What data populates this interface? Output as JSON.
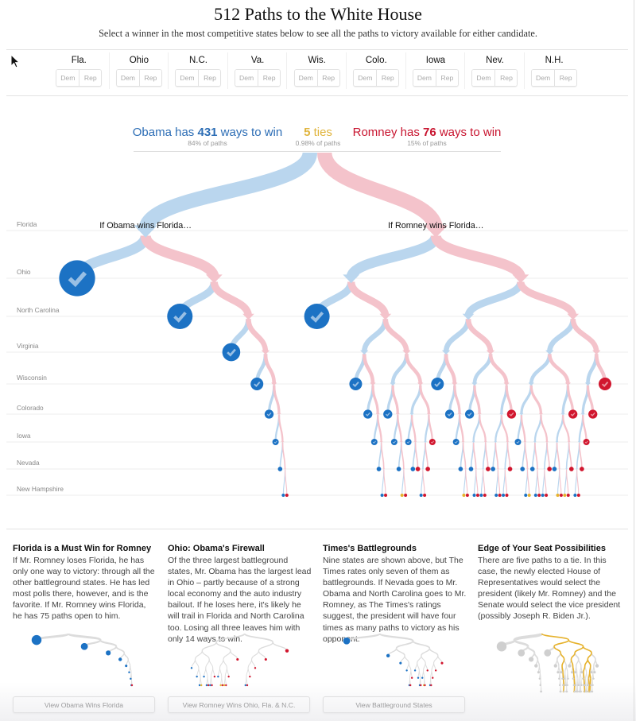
{
  "header": {
    "title": "512 Paths to the White House",
    "subtitle": "Select a winner in the most competitive states below to see all the paths to victory available for either candidate."
  },
  "states": [
    {
      "label": "Fla.",
      "dem": "Dem",
      "rep": "Rep"
    },
    {
      "label": "Ohio",
      "dem": "Dem",
      "rep": "Rep"
    },
    {
      "label": "N.C.",
      "dem": "Dem",
      "rep": "Rep"
    },
    {
      "label": "Va.",
      "dem": "Dem",
      "rep": "Rep"
    },
    {
      "label": "Wis.",
      "dem": "Dem",
      "rep": "Rep"
    },
    {
      "label": "Colo.",
      "dem": "Dem",
      "rep": "Rep"
    },
    {
      "label": "Iowa",
      "dem": "Dem",
      "rep": "Rep"
    },
    {
      "label": "Nev.",
      "dem": "Dem",
      "rep": "Rep"
    },
    {
      "label": "N.H.",
      "dem": "Dem",
      "rep": "Rep"
    }
  ],
  "summary": {
    "obama": {
      "lead": "Obama has ",
      "count": "431",
      "tail": " ways to win",
      "share": "84% of paths"
    },
    "ties": {
      "count": "5",
      "tail": " ties",
      "share": "0.98% of paths"
    },
    "romney": {
      "lead": "Romney has ",
      "count": "76",
      "tail": " ways to win",
      "share": "15% of paths"
    }
  },
  "colors": {
    "obama": "#1c72c4",
    "romney": "#d1162e",
    "tie": "#e6b22c",
    "obama_light": "#bad6ee",
    "romney_light": "#f4c3cb",
    "mini_line": "#dcdcdc",
    "mini_dot": "#cfcfcf"
  },
  "chart_data": {
    "type": "tree",
    "title": "512 Paths to the White House",
    "levels": [
      "Florida",
      "Ohio",
      "North Carolina",
      "Virginia",
      "Wisconsin",
      "Colorado",
      "Iowa",
      "Nevada",
      "New Hampshire"
    ],
    "branch_order": [
      "Obama",
      "Romney"
    ],
    "branch_labels": [
      "If Obama wins Florida…",
      "If Romney wins Florida…"
    ],
    "outcome_codes": {
      "D": "Obama wins",
      "R": "Romney wins",
      "T": "Tie"
    },
    "totals": {
      "paths": 512,
      "obama": 431,
      "romney": 76,
      "ties": 5
    },
    "tree": [
      [
        "D",
        [
          "D",
          [
            "D",
            [
              "D",
              [
                "D",
                [
                  "D",
                  [
                    "D",
                    [
                      "D",
                      "R"
                    ]
                  ]
                ]
              ]
            ]
          ]
        ]
      ],
      [
        [
          "D",
          [
            [
              "D",
              [
                "D",
                [
                  "D",
                  [
                    "D",
                    [
                      "D",
                      "R"
                    ]
                  ]
                ]
              ]
            ],
            [
              [
                "D",
                [
                  "D",
                  [
                    "D",
                    [
                      "T",
                      "R"
                    ]
                  ]
                ]
              ],
              [
                [
                  "D",
                  [
                    "D",
                    "R"
                  ]
                ],
                [
                  [
                    [
                      "D",
                      "R"
                    ],
                    "R"
                  ],
                  "R"
                ]
              ]
            ]
          ]
        ],
        [
          [
            [
              "D",
              [
                "D",
                [
                  "D",
                  [
                    "D",
                    [
                      "T",
                      "R"
                    ]
                  ]
                ]
              ]
            ],
            [
              [
                "D",
                [
                  [
                    "D",
                    [
                      "D",
                      "R"
                    ]
                  ],
                  [
                    [
                      "D",
                      "R"
                    ],
                    "R"
                  ]
                ]
              ],
              [
                [
                  [
                    "D",
                    [
                      "D",
                      "R"
                    ]
                  ],
                  [
                    [
                      "D",
                      "R"
                    ],
                    "R"
                  ]
                ],
                "R"
              ]
            ]
          ],
          [
            [
              [
                [
                  "D",
                  [
                    "D",
                    [
                      "D",
                      "T"
                    ]
                  ]
                ],
                [
                  [
                    "D",
                    [
                      "D",
                      "R"
                    ]
                  ],
                  [
                    [
                      "D",
                      "R"
                    ],
                    "R"
                  ]
                ]
              ],
              [
                [
                  [
                    "D",
                    [
                      "T",
                      "R"
                    ]
                  ],
                  [
                    [
                      "T",
                      "R"
                    ],
                    "R"
                  ]
                ],
                "R"
              ]
            ],
            [
              [
                [
                  [
                    [
                      "D",
                      "R"
                    ],
                    "R"
                  ],
                  "R"
                ],
                "R"
              ],
              "R"
            ]
          ]
        ]
      ]
    ]
  },
  "articles": [
    {
      "title": "Florida is a Must Win for Romney",
      "body": "If Mr. Romney loses Florida, he has only one way to victory: through all the other battleground states. He has led most polls there, however, and is the favorite. If Mr. Romney wins Florida, he has 75 paths open to him.",
      "button": "View Obama Wins Florida",
      "thumbnail": {
        "fixed": {
          "Florida": "Obama"
        },
        "highlight": "none"
      }
    },
    {
      "title": "Ohio: Obama's Firewall",
      "body": "Of the three largest battleground states, Mr. Obama has the largest lead in Ohio – partly because of a strong local economy and the auto industry bailout. If he loses here, it's likely he will trail in Florida and North Carolina too. Losing all three leaves him with only 14 ways to win.",
      "button": "View Romney Wins Ohio, Fla. & N.C.",
      "thumbnail": {
        "fixed": {
          "Florida": "Romney",
          "Ohio": "Romney",
          "North Carolina": "Romney"
        },
        "highlight": "none"
      }
    },
    {
      "title": "Times's Battlegrounds",
      "body": "Nine states are shown above, but The Times rates only seven of them as battlegrounds. If Nevada goes to Mr. Obama and North Carolina goes to Mr. Romney, as The Times's ratings suggest, the president will have four times as many paths to victory as his opponent.",
      "button": "View Battleground States",
      "thumbnail": {
        "fixed": {
          "North Carolina": "Romney",
          "Nevada": "Obama"
        },
        "highlight": "none"
      }
    },
    {
      "title": "Edge of Your Seat Possibilities",
      "body": "There are five paths to a tie. In this case, the newly elected House of Representatives would select the president (likely Mr. Romney) and the Senate would select the vice president (possibly Joseph R. Biden Jr.).",
      "thumbnail": {
        "fixed": {},
        "highlight": "ties"
      }
    }
  ]
}
